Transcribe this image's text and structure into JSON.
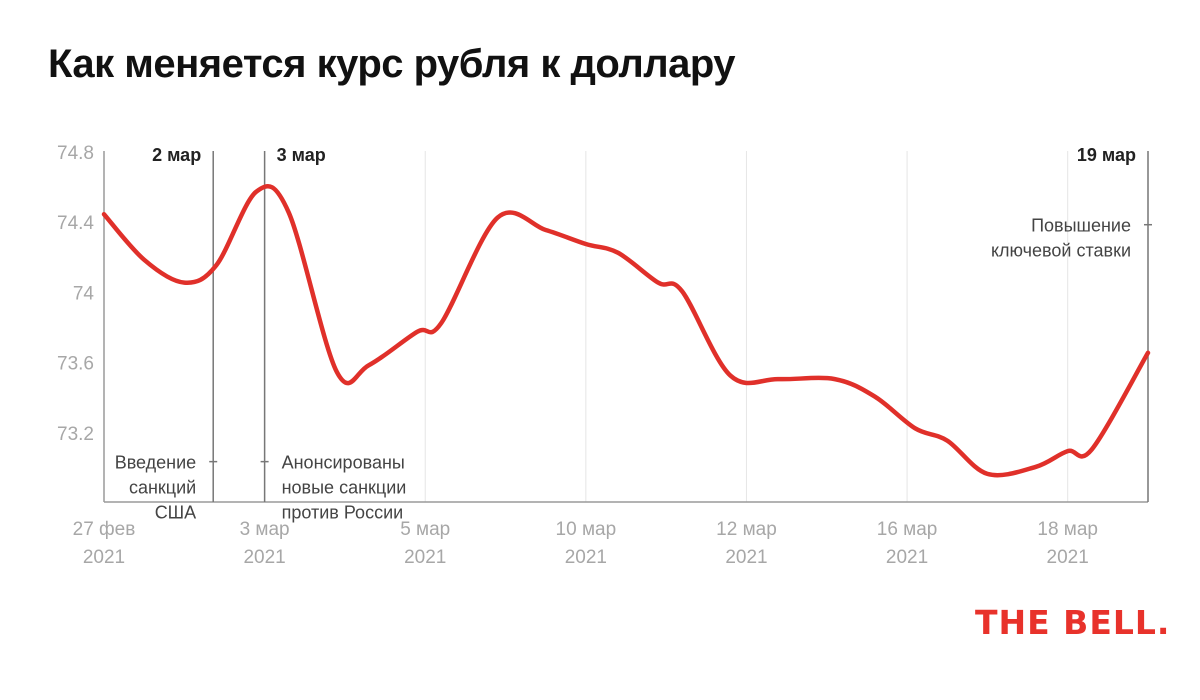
{
  "title": "Как меняется курс рубля к доллару",
  "logo": "THE BELL.",
  "colors": {
    "line": "#e0302a",
    "grid": "#e6e6e6",
    "axis": "#9a9a9a",
    "marker": "#777777",
    "text": "#222222",
    "muted": "#a7a7a7"
  },
  "chart_data": {
    "type": "line",
    "ylim": [
      72.8,
      74.8
    ],
    "y_ticks": [
      "74.8",
      "74.4",
      "74",
      "73.6",
      "73.2"
    ],
    "x_ticks": [
      {
        "x": 0,
        "line1": "27 фев",
        "line2": "2021"
      },
      {
        "x": 1,
        "line1": "3 мар",
        "line2": "2021"
      },
      {
        "x": 2,
        "line1": "5 мар",
        "line2": "2021"
      },
      {
        "x": 3,
        "line1": "10 мар",
        "line2": "2021"
      },
      {
        "x": 4,
        "line1": "12 мар",
        "line2": "2021"
      },
      {
        "x": 5,
        "line1": "16 мар",
        "line2": "2021"
      },
      {
        "x": 6,
        "line1": "18 мар",
        "line2": "2021"
      }
    ],
    "series": [
      {
        "points": [
          [
            0.0,
            74.44
          ],
          [
            0.25,
            74.18
          ],
          [
            0.5,
            74.05
          ],
          [
            0.7,
            74.15
          ],
          [
            0.95,
            74.57
          ],
          [
            1.15,
            74.45
          ],
          [
            1.45,
            73.54
          ],
          [
            1.65,
            73.58
          ],
          [
            1.95,
            73.77
          ],
          [
            2.1,
            73.82
          ],
          [
            2.45,
            74.42
          ],
          [
            2.75,
            74.35
          ],
          [
            3.0,
            74.27
          ],
          [
            3.2,
            74.22
          ],
          [
            3.45,
            74.05
          ],
          [
            3.6,
            74.0
          ],
          [
            3.9,
            73.52
          ],
          [
            4.2,
            73.5
          ],
          [
            4.55,
            73.5
          ],
          [
            4.8,
            73.4
          ],
          [
            5.05,
            73.22
          ],
          [
            5.25,
            73.15
          ],
          [
            5.5,
            72.96
          ],
          [
            5.8,
            73.0
          ],
          [
            6.0,
            73.09
          ],
          [
            6.15,
            73.1
          ],
          [
            6.5,
            73.65
          ]
        ]
      }
    ],
    "annotations": [
      {
        "x": 0.68,
        "date": "2 мар",
        "text": [
          "Введение",
          "санкций",
          "США"
        ],
        "side": "left",
        "text_y": 73.03
      },
      {
        "x": 1.0,
        "date": "3 мар",
        "text": [
          "Анонсированы",
          "новые санкции",
          "против России"
        ],
        "side": "right",
        "text_y": 73.03
      },
      {
        "x": 6.5,
        "date": "19 мар",
        "text": [
          "Повышение",
          "ключевой ставки"
        ],
        "side": "left",
        "text_y": 74.38
      }
    ]
  }
}
